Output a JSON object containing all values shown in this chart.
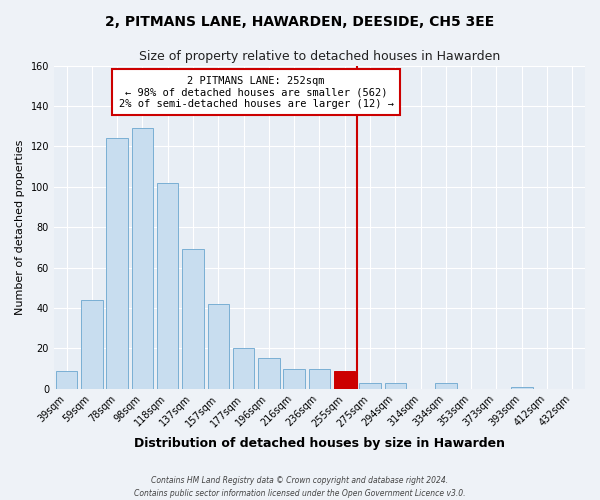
{
  "title": "2, PITMANS LANE, HAWARDEN, DEESIDE, CH5 3EE",
  "subtitle": "Size of property relative to detached houses in Hawarden",
  "xlabel": "Distribution of detached houses by size in Hawarden",
  "ylabel": "Number of detached properties",
  "bar_labels": [
    "39sqm",
    "59sqm",
    "78sqm",
    "98sqm",
    "118sqm",
    "137sqm",
    "157sqm",
    "177sqm",
    "196sqm",
    "216sqm",
    "236sqm",
    "255sqm",
    "275sqm",
    "294sqm",
    "314sqm",
    "334sqm",
    "353sqm",
    "373sqm",
    "393sqm",
    "412sqm",
    "432sqm"
  ],
  "bar_values": [
    9,
    44,
    124,
    129,
    102,
    69,
    42,
    20,
    15,
    10,
    10,
    9,
    3,
    3,
    0,
    3,
    0,
    0,
    1,
    0,
    0
  ],
  "bar_color": "#c8ddef",
  "bar_edge_color": "#7aafd4",
  "highlight_index": 11,
  "highlight_bar_color": "#cc0000",
  "highlight_line_color": "#cc0000",
  "annotation_title": "2 PITMANS LANE: 252sqm",
  "annotation_line1": "← 98% of detached houses are smaller (562)",
  "annotation_line2": "2% of semi-detached houses are larger (12) →",
  "annotation_box_facecolor": "#ffffff",
  "annotation_box_edgecolor": "#cc0000",
  "bg_color": "#eef2f7",
  "plot_bg_color": "#e8eef5",
  "grid_color": "#ffffff",
  "ylim": [
    0,
    160
  ],
  "yticks": [
    0,
    20,
    40,
    60,
    80,
    100,
    120,
    140,
    160
  ],
  "title_fontsize": 10,
  "subtitle_fontsize": 9,
  "xlabel_fontsize": 9,
  "ylabel_fontsize": 8,
  "tick_fontsize": 7,
  "footer1": "Contains HM Land Registry data © Crown copyright and database right 2024.",
  "footer2": "Contains public sector information licensed under the Open Government Licence v3.0."
}
